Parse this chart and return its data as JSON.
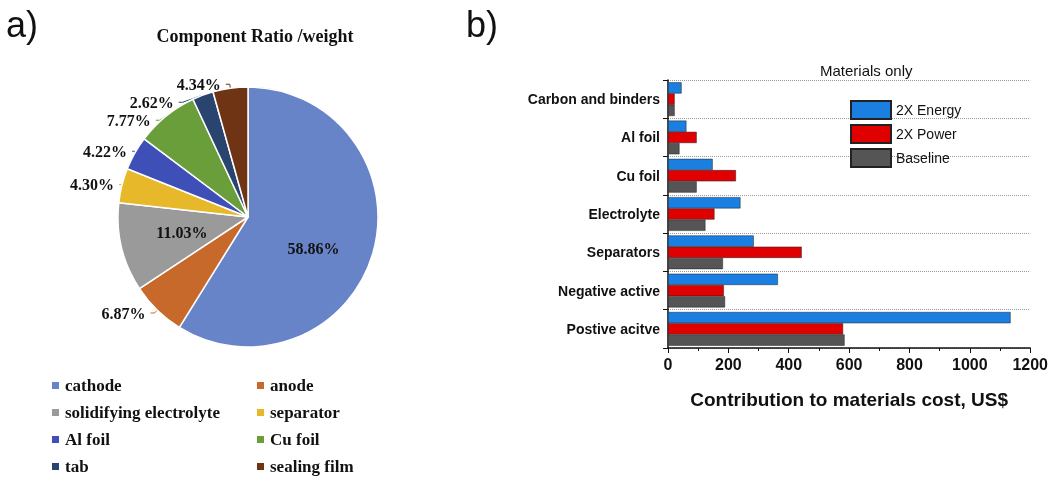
{
  "chart_data": [
    {
      "type": "pie",
      "title": "Component Ratio /weight",
      "annotations": [
        "a)"
      ],
      "categories": [
        "cathode",
        "anode",
        "solidifying electrolyte",
        "separator",
        "Al foil",
        "Cu foil",
        "tab",
        "sealing film"
      ],
      "values": [
        58.86,
        6.87,
        11.03,
        4.3,
        4.22,
        7.77,
        2.62,
        4.34
      ],
      "value_labels": [
        "58.86%",
        "6.87%",
        "11.03%",
        "4.30%",
        "4.22%",
        "7.77%",
        "2.62%",
        "4.34%"
      ],
      "colors": [
        "#6884c8",
        "#c8692c",
        "#9a9a9a",
        "#e6b82a",
        "#3f4fb8",
        "#6a9e3a",
        "#2a4470",
        "#6e3414"
      ],
      "legend": "bottom"
    },
    {
      "type": "bar",
      "orientation": "horizontal",
      "annotations": [
        "b)",
        "Materials only"
      ],
      "xlabel": "Contribution to materials cost, US$",
      "categories": [
        "Carbon and binders",
        "Al foil",
        "Cu foil",
        "Electrolyte",
        "Separators",
        "Negative active",
        "Postive acitve"
      ],
      "series": [
        {
          "name": "2X Energy",
          "color": "#1a7fe0",
          "values": [
            45,
            61,
            148,
            240,
            284,
            364,
            1135
          ]
        },
        {
          "name": "2X Power",
          "color": "#e00000",
          "values": [
            22,
            95,
            225,
            154,
            443,
            185,
            580
          ]
        },
        {
          "name": "Baseline",
          "color": "#555555",
          "values": [
            22,
            38,
            95,
            124,
            182,
            189,
            585
          ]
        }
      ],
      "xlim": [
        0,
        1200
      ],
      "xticks": [
        0,
        200,
        400,
        600,
        800,
        {
          "value": 1000,
          "label": "1000"
        },
        {
          "value": 1200,
          "label": "1200"
        }
      ],
      "grid": "y",
      "legend": "top right"
    }
  ]
}
